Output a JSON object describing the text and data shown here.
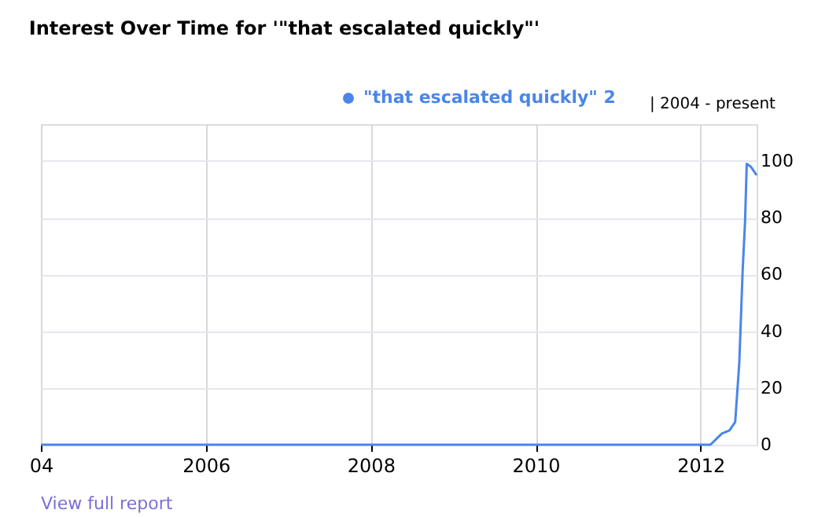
{
  "chart_data": {
    "type": "line",
    "title": "Interest Over Time for '\"that escalated quickly\"'",
    "x": [
      2004.0,
      2012.12,
      2012.26,
      2012.35,
      2012.42,
      2012.47,
      2012.51,
      2012.54,
      2012.56,
      2012.61,
      2012.68
    ],
    "series": [
      {
        "name": "\"that escalated quickly\" 2",
        "color": "#4a86e8",
        "values": [
          0,
          0,
          4,
          5,
          8,
          29,
          61,
          79,
          99,
          98,
          95
        ]
      }
    ],
    "xlim": [
      2004.0,
      2012.68
    ],
    "xticks": [
      {
        "value": 2004,
        "label": "04"
      },
      2006,
      2008,
      2010,
      2012
    ],
    "ylim": [
      0,
      113
    ],
    "yticks": [
      0,
      20,
      40,
      60,
      80,
      100
    ],
    "grid": true,
    "legend": "top right",
    "marker": "none",
    "line_style": "solid",
    "annotations": [
      "| 2004 - present",
      "View full report"
    ]
  }
}
